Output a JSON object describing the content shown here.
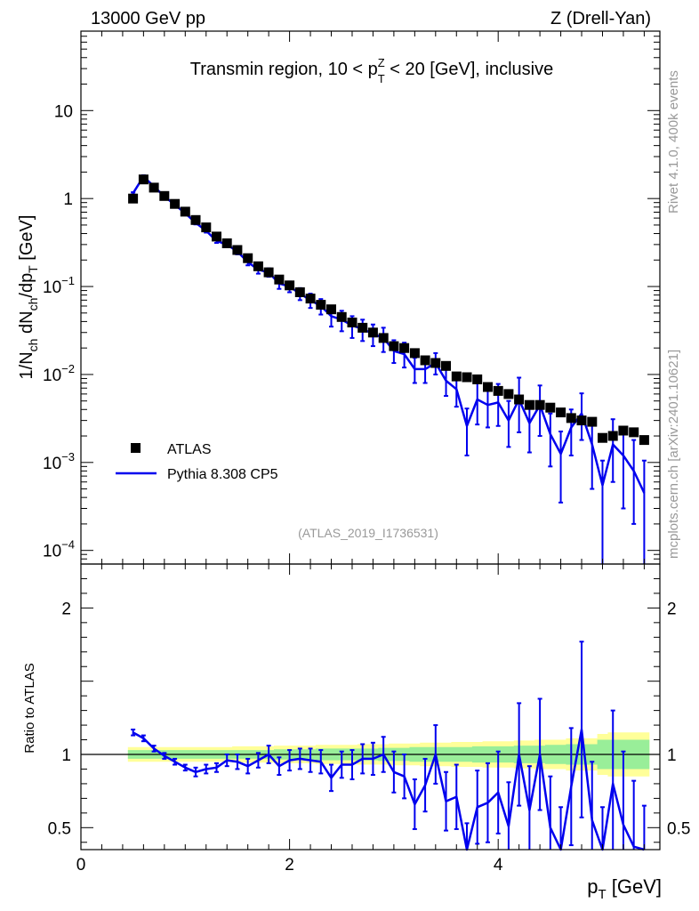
{
  "header": {
    "energy_label": "13000 GeV pp",
    "process_label": "Z (Drell-Yan)"
  },
  "side_labels": {
    "rivet": "Rivet 4.1.0,  400k events",
    "mcplots": "mcplots.cern.ch [arXiv:2401.10621]"
  },
  "colors": {
    "data": "#000000",
    "mc": "#0000ee",
    "band_inner": "#99ee99",
    "band_outer": "#ffff99",
    "watermark": "#999999"
  },
  "chart_data": {
    "type": "line",
    "title": "Transmin region, 10 < p_T^Z < 20 [GeV], inclusive",
    "title_parts": {
      "pre": "Transmin region, 10 < p",
      "sup": "Z",
      "sub": "T",
      "post": " < 20 [GeV], inclusive"
    },
    "analysis_id": "(ATLAS_2019_I1736531)",
    "xlabel": "p_T [GeV]",
    "xlabel_parts": {
      "main": "p",
      "sub": "T",
      "unit": " [GeV]"
    },
    "ylabel": "1/N_ch dN_ch/dp_T [GeV]",
    "ratio_ylabel": "Ratio to ATLAS",
    "xlim": [
      0,
      5.55
    ],
    "ylim": [
      7e-05,
      80
    ],
    "yscale": "log",
    "ratio_ylim": [
      0.35,
      2.3
    ],
    "x_ticks": [
      0,
      2,
      4
    ],
    "y_ticks_log": [
      {
        "v": 10,
        "label": "10"
      },
      {
        "v": 1,
        "label": "1"
      },
      {
        "v": 0.1,
        "label": "10",
        "exp": "−1"
      },
      {
        "v": 0.01,
        "label": "10",
        "exp": "−2"
      },
      {
        "v": 0.001,
        "label": "10",
        "exp": "−3"
      },
      {
        "v": 0.0001,
        "label": "10",
        "exp": "−4"
      }
    ],
    "ratio_ticks": [
      {
        "v": 2,
        "label": "2"
      },
      {
        "v": 1,
        "label": "1"
      },
      {
        "v": 0.5,
        "label": "0.5"
      }
    ],
    "legend": {
      "position": "lower-left",
      "entries": [
        {
          "name": "ATLAS",
          "kind": "marker"
        },
        {
          "name": "Pythia 8.308 CP5",
          "kind": "line"
        }
      ]
    },
    "x": [
      0.5,
      0.6,
      0.7,
      0.8,
      0.9,
      1.0,
      1.1,
      1.2,
      1.3,
      1.4,
      1.5,
      1.6,
      1.7,
      1.8,
      1.9,
      2.0,
      2.1,
      2.2,
      2.3,
      2.4,
      2.5,
      2.6,
      2.7,
      2.8,
      2.9,
      3.0,
      3.1,
      3.2,
      3.3,
      3.4,
      3.5,
      3.6,
      3.7,
      3.8,
      3.9,
      4.0,
      4.1,
      4.2,
      4.3,
      4.4,
      4.5,
      4.6,
      4.7,
      4.8,
      4.9,
      5.0,
      5.1,
      5.2,
      5.3,
      5.4
    ],
    "series": [
      {
        "name": "ATLAS",
        "values": [
          1.0,
          1.65,
          1.33,
          1.07,
          0.87,
          0.71,
          0.57,
          0.47,
          0.37,
          0.31,
          0.26,
          0.21,
          0.17,
          0.145,
          0.12,
          0.103,
          0.086,
          0.073,
          0.062,
          0.055,
          0.045,
          0.039,
          0.034,
          0.03,
          0.026,
          0.021,
          0.02,
          0.0175,
          0.0145,
          0.0135,
          0.0125,
          0.0095,
          0.0093,
          0.0088,
          0.0072,
          0.0065,
          0.006,
          0.0052,
          0.0045,
          0.0045,
          0.0042,
          0.0037,
          0.0032,
          0.003,
          0.0029,
          0.0019,
          0.002,
          0.0023,
          0.0022,
          0.0018
        ]
      },
      {
        "name": "Pythia 8.308 CP5",
        "values": [
          1.15,
          1.78,
          1.37,
          1.06,
          0.85,
          0.68,
          0.53,
          0.43,
          0.33,
          0.3,
          0.25,
          0.19,
          0.155,
          0.145,
          0.108,
          0.1,
          0.083,
          0.07,
          0.06,
          0.046,
          0.042,
          0.036,
          0.033,
          0.029,
          0.026,
          0.0185,
          0.017,
          0.0115,
          0.0115,
          0.0135,
          0.0085,
          0.0068,
          0.0026,
          0.0052,
          0.0045,
          0.0048,
          0.003,
          0.0052,
          0.0028,
          0.0045,
          0.0021,
          0.00125,
          0.0025,
          0.0036,
          0.0016,
          0.00055,
          0.0016,
          0.0012,
          0.0008,
          0.00045
        ],
        "err_up": [
          0.03,
          0.06,
          0.04,
          0.03,
          0.03,
          0.025,
          0.022,
          0.02,
          0.017,
          0.018,
          0.018,
          0.016,
          0.015,
          0.016,
          0.014,
          0.014,
          0.013,
          0.013,
          0.012,
          0.011,
          0.011,
          0.01,
          0.009,
          0.008,
          0.008,
          0.006,
          0.006,
          0.004,
          0.004,
          0.004,
          0.003,
          0.003,
          0.0015,
          0.003,
          0.0025,
          0.003,
          0.002,
          0.004,
          0.002,
          0.003,
          0.0015,
          0.001,
          0.0015,
          0.0025,
          0.0012,
          0.0005,
          0.0015,
          0.0012,
          0.001,
          0.0006
        ],
        "err_down": [
          0.03,
          0.06,
          0.04,
          0.03,
          0.03,
          0.025,
          0.022,
          0.02,
          0.017,
          0.018,
          0.018,
          0.016,
          0.015,
          0.016,
          0.014,
          0.014,
          0.013,
          0.013,
          0.012,
          0.011,
          0.011,
          0.01,
          0.009,
          0.008,
          0.008,
          0.005,
          0.005,
          0.0035,
          0.0035,
          0.0035,
          0.0028,
          0.0025,
          0.0014,
          0.0025,
          0.002,
          0.0022,
          0.0015,
          0.003,
          0.0015,
          0.0025,
          0.0012,
          0.0009,
          0.0013,
          0.0018,
          0.0011,
          0.00054,
          0.001,
          0.0009,
          0.0006,
          0.00044
        ]
      }
    ],
    "ratio": {
      "values": [
        1.15,
        1.11,
        1.04,
        0.99,
        0.95,
        0.91,
        0.88,
        0.9,
        0.91,
        0.96,
        0.95,
        0.92,
        0.96,
        1.0,
        0.92,
        0.96,
        0.97,
        0.96,
        0.95,
        0.84,
        0.93,
        0.93,
        0.97,
        0.97,
        1.0,
        0.88,
        0.85,
        0.66,
        0.79,
        1.0,
        0.68,
        0.71,
        0.28,
        0.64,
        0.67,
        0.74,
        0.51,
        1.0,
        0.62,
        1.0,
        0.5,
        0.34,
        0.78,
        1.17,
        0.55,
        0.29,
        0.8,
        0.52,
        0.37,
        0.25
      ],
      "err": [
        0.02,
        0.02,
        0.02,
        0.02,
        0.02,
        0.02,
        0.03,
        0.03,
        0.03,
        0.04,
        0.05,
        0.05,
        0.05,
        0.06,
        0.06,
        0.07,
        0.07,
        0.08,
        0.08,
        0.09,
        0.09,
        0.1,
        0.1,
        0.11,
        0.12,
        0.14,
        0.15,
        0.17,
        0.18,
        0.2,
        0.2,
        0.22,
        0.25,
        0.25,
        0.27,
        0.28,
        0.3,
        0.35,
        0.3,
        0.38,
        0.35,
        0.3,
        0.4,
        0.6,
        0.4,
        0.35,
        0.5,
        0.5,
        0.45,
        0.4
      ],
      "band_inner": [
        0.03,
        0.03,
        0.03,
        0.03,
        0.03,
        0.03,
        0.03,
        0.03,
        0.03,
        0.03,
        0.03,
        0.03,
        0.03,
        0.03,
        0.035,
        0.035,
        0.035,
        0.035,
        0.04,
        0.04,
        0.04,
        0.04,
        0.04,
        0.04,
        0.045,
        0.045,
        0.045,
        0.05,
        0.05,
        0.05,
        0.05,
        0.05,
        0.05,
        0.055,
        0.055,
        0.055,
        0.055,
        0.06,
        0.06,
        0.06,
        0.065,
        0.065,
        0.07,
        0.07,
        0.07,
        0.1,
        0.1,
        0.1,
        0.1,
        0.1
      ],
      "band_outer": [
        0.05,
        0.05,
        0.05,
        0.05,
        0.05,
        0.05,
        0.05,
        0.05,
        0.05,
        0.05,
        0.055,
        0.055,
        0.055,
        0.055,
        0.06,
        0.06,
        0.06,
        0.06,
        0.065,
        0.065,
        0.065,
        0.065,
        0.07,
        0.07,
        0.07,
        0.075,
        0.075,
        0.075,
        0.08,
        0.08,
        0.08,
        0.085,
        0.085,
        0.085,
        0.09,
        0.09,
        0.09,
        0.095,
        0.095,
        0.1,
        0.1,
        0.1,
        0.11,
        0.11,
        0.11,
        0.14,
        0.15,
        0.15,
        0.15,
        0.15
      ]
    }
  }
}
